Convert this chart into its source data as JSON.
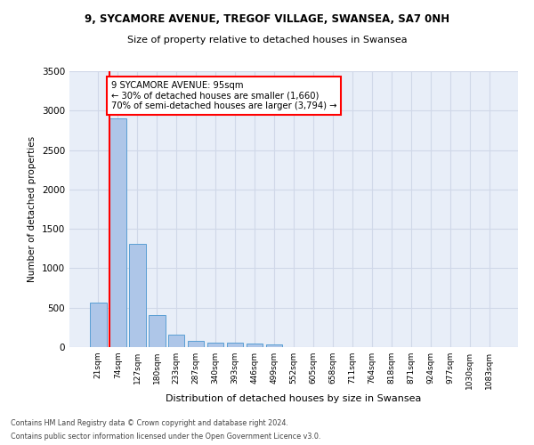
{
  "title1": "9, SYCAMORE AVENUE, TREGOF VILLAGE, SWANSEA, SA7 0NH",
  "title2": "Size of property relative to detached houses in Swansea",
  "xlabel": "Distribution of detached houses by size in Swansea",
  "ylabel": "Number of detached properties",
  "footnote1": "Contains HM Land Registry data © Crown copyright and database right 2024.",
  "footnote2": "Contains public sector information licensed under the Open Government Licence v3.0.",
  "bin_labels": [
    "21sqm",
    "74sqm",
    "127sqm",
    "180sqm",
    "233sqm",
    "287sqm",
    "340sqm",
    "393sqm",
    "446sqm",
    "499sqm",
    "552sqm",
    "605sqm",
    "658sqm",
    "711sqm",
    "764sqm",
    "818sqm",
    "871sqm",
    "924sqm",
    "977sqm",
    "1030sqm",
    "1083sqm"
  ],
  "bar_values": [
    570,
    2900,
    1310,
    410,
    155,
    80,
    58,
    55,
    45,
    38,
    0,
    0,
    0,
    0,
    0,
    0,
    0,
    0,
    0,
    0,
    0
  ],
  "bar_color": "#aec6e8",
  "bar_edge_color": "#5a9fd4",
  "grid_color": "#d0d8e8",
  "background_color": "#e8eef8",
  "annotation_text": "9 SYCAMORE AVENUE: 95sqm\n← 30% of detached houses are smaller (1,660)\n70% of semi-detached houses are larger (3,794) →",
  "ylim": [
    0,
    3500
  ],
  "yticks": [
    0,
    500,
    1000,
    1500,
    2000,
    2500,
    3000,
    3500
  ]
}
